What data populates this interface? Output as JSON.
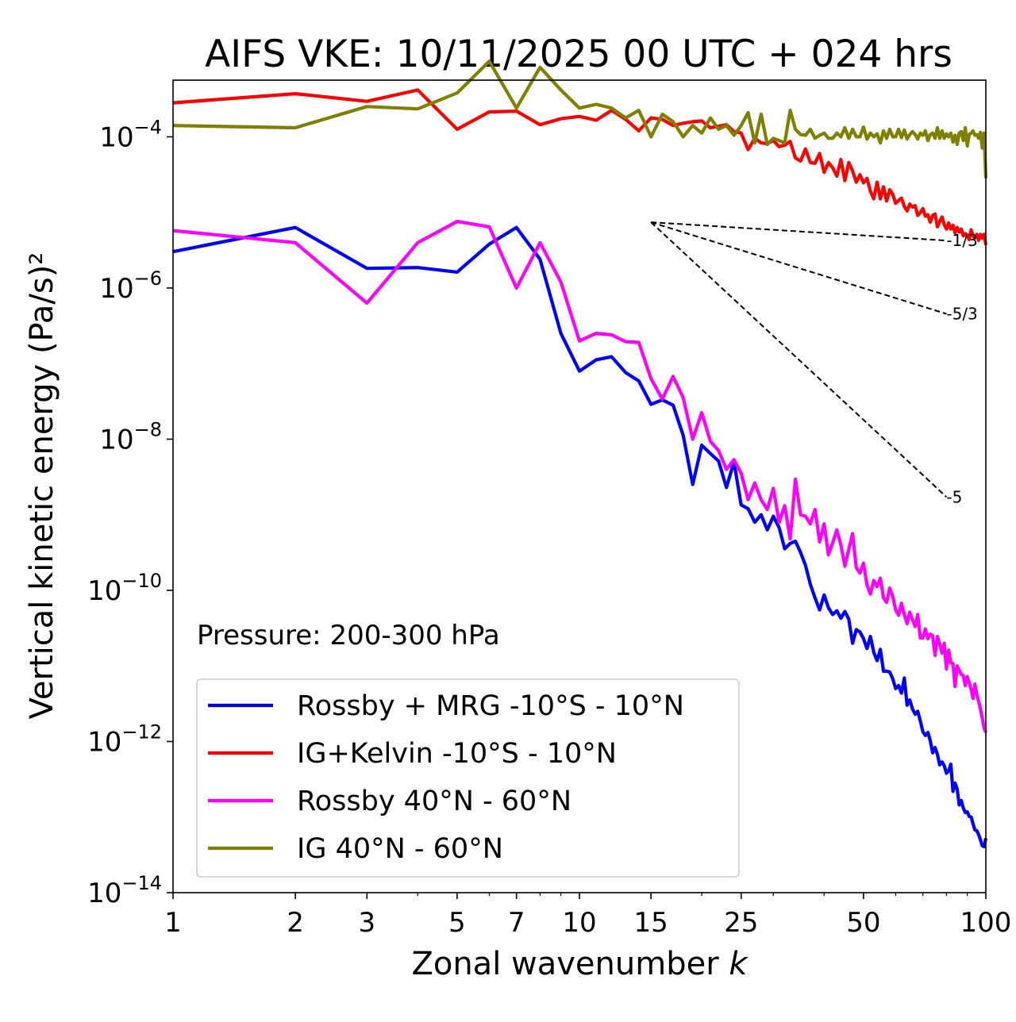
{
  "chart_data": {
    "type": "line",
    "title": "AIFS VKE: 10/11/2025 00 UTC + 024 hrs",
    "xlabel": "Zonal wavenumber",
    "xlabel_var": "k",
    "ylabel": "Vertical kinetic energy (Pa/s)²",
    "xscale": "log",
    "yscale": "log",
    "xlim": [
      1,
      100
    ],
    "ylim_exp": [
      -14,
      -3.25
    ],
    "xticks": [
      1,
      2,
      3,
      5,
      7,
      10,
      15,
      25,
      50,
      100
    ],
    "xtick_labels": [
      "1",
      "2",
      "3",
      "5",
      "7",
      "10",
      "15",
      "25",
      "50",
      "100"
    ],
    "yticks_exp": [
      -14,
      -12,
      -10,
      -8,
      -6,
      -4
    ],
    "ytick_labels": [
      {
        "base": "10",
        "exp": "−14"
      },
      {
        "base": "10",
        "exp": "−12"
      },
      {
        "base": "10",
        "exp": "−10"
      },
      {
        "base": "10",
        "exp": "−8"
      },
      {
        "base": "10",
        "exp": "−6"
      },
      {
        "base": "10",
        "exp": "−4"
      }
    ],
    "annotation": "Pressure: 200-300 hPa",
    "legend_position": "lower-left",
    "reference_slopes": [
      {
        "label": "-1/3",
        "slope": -0.333,
        "from_k": 15,
        "to_k": 80,
        "from_log10": -5.13
      },
      {
        "label": "-5/3",
        "slope": -1.667,
        "from_k": 15,
        "to_k": 80,
        "from_log10": -5.13
      },
      {
        "label": "-5",
        "slope": -5,
        "from_k": 15,
        "to_k": 80,
        "from_log10": -5.13
      }
    ],
    "series": [
      {
        "name": "Rossby + MRG -10°S - 10°N",
        "color": "#0000ff",
        "values_log10": [
          -5.52,
          -5.2,
          -5.74,
          -5.73,
          -5.79,
          -5.42,
          -5.2,
          -5.62,
          -6.6,
          -7.1,
          -6.95,
          -6.91,
          -7.12,
          -7.23,
          -7.54,
          -7.48,
          -7.55,
          -7.95,
          -8.6,
          -8.08,
          -8.19,
          -8.29,
          -8.64,
          -8.3,
          -8.87,
          -8.92,
          -9.1,
          -9.0,
          -9.2,
          -9.02,
          -9.17,
          -9.45,
          -9.38,
          -9.35,
          -9.5,
          -9.67,
          -9.92,
          -10.1,
          -10.26,
          -10.06,
          -10.23,
          -10.32,
          -10.27,
          -10.37,
          -10.28,
          -10.38,
          -10.7,
          -10.52,
          -10.55,
          -10.64,
          -10.77,
          -10.61,
          -10.82,
          -10.93,
          -10.78,
          -11.07,
          -11.07,
          -11.08,
          -11.17,
          -11.3,
          -11.26,
          -11.36,
          -11.16,
          -11.52,
          -11.45,
          -11.57,
          -11.64,
          -11.6,
          -11.73,
          -11.87,
          -11.92,
          -11.88,
          -11.99,
          -12.15,
          -12.08,
          -12.17,
          -12.31,
          -12.27,
          -12.32,
          -12.42,
          -12.39,
          -12.3,
          -12.66,
          -12.55,
          -12.63,
          -12.84,
          -12.78,
          -12.88,
          -12.94,
          -12.93,
          -12.99,
          -13.0,
          -13.09,
          -13.17,
          -13.18,
          -13.23,
          -13.3,
          -13.38,
          -13.39,
          -13.28
        ]
      },
      {
        "name": "IG+Kelvin -10°S - 10°N",
        "color": "#ff0000",
        "values_log10": [
          -3.55,
          -3.43,
          -3.53,
          -3.38,
          -3.9,
          -3.67,
          -3.66,
          -3.84,
          -3.76,
          -3.73,
          -3.78,
          -3.65,
          -3.77,
          -3.92,
          -3.75,
          -3.77,
          -3.85,
          -3.82,
          -3.8,
          -3.79,
          -3.88,
          -3.86,
          -3.84,
          -3.93,
          -3.95,
          -4.17,
          -4.02,
          -4.08,
          -4.09,
          -4.05,
          -4.13,
          -4.11,
          -4.06,
          -4.28,
          -4.32,
          -4.16,
          -4.34,
          -4.35,
          -4.22,
          -4.47,
          -4.34,
          -4.41,
          -4.52,
          -4.3,
          -4.58,
          -4.34,
          -4.45,
          -4.6,
          -4.5,
          -4.61,
          -4.55,
          -4.72,
          -4.82,
          -4.6,
          -4.82,
          -4.66,
          -4.85,
          -4.7,
          -4.76,
          -4.88,
          -4.84,
          -4.81,
          -4.92,
          -4.98,
          -4.89,
          -4.93,
          -4.91,
          -5.04,
          -5.0,
          -4.95,
          -5.05,
          -5.03,
          -5.13,
          -5.04,
          -5.02,
          -5.19,
          -5.12,
          -5.06,
          -5.16,
          -5.22,
          -5.14,
          -5.22,
          -5.17,
          -5.27,
          -5.2,
          -5.26,
          -5.22,
          -5.31,
          -5.28,
          -5.3,
          -5.36,
          -5.23,
          -5.31,
          -5.34,
          -5.29,
          -5.37,
          -5.29,
          -5.34,
          -5.29,
          -5.43
        ]
      },
      {
        "name": "Rossby 40°N - 60°N",
        "color": "#ff00ff",
        "values_log10": [
          -5.24,
          -5.4,
          -6.2,
          -5.4,
          -5.12,
          -5.19,
          -6.0,
          -5.4,
          -5.92,
          -6.7,
          -6.6,
          -6.62,
          -6.71,
          -6.72,
          -7.2,
          -7.47,
          -7.17,
          -7.45,
          -8.0,
          -7.65,
          -8.03,
          -8.15,
          -8.4,
          -8.27,
          -8.45,
          -8.8,
          -8.58,
          -8.8,
          -8.93,
          -8.65,
          -9.1,
          -8.88,
          -9.32,
          -8.53,
          -9.0,
          -9.02,
          -9.12,
          -8.93,
          -9.36,
          -9.12,
          -9.53,
          -9.37,
          -9.2,
          -9.4,
          -9.68,
          -9.46,
          -9.25,
          -9.7,
          -9.77,
          -9.64,
          -9.93,
          -10.05,
          -9.87,
          -9.95,
          -9.84,
          -10.1,
          -10.16,
          -9.97,
          -10.08,
          -10.26,
          -10.33,
          -10.17,
          -10.32,
          -10.44,
          -10.29,
          -10.39,
          -10.48,
          -10.32,
          -10.63,
          -10.63,
          -10.51,
          -10.64,
          -10.58,
          -10.6,
          -10.86,
          -10.61,
          -10.71,
          -10.83,
          -10.7,
          -11.04,
          -10.79,
          -10.96,
          -10.97,
          -11.27,
          -11.0,
          -11.06,
          -11.11,
          -11.13,
          -11.26,
          -11.14,
          -11.22,
          -11.31,
          -11.43,
          -11.24,
          -11.37,
          -11.47,
          -11.57,
          -11.69,
          -11.82,
          -11.88
        ]
      },
      {
        "name": "IG 40°N - 60°N",
        "color": "#808000",
        "values_log10": [
          -3.85,
          -3.88,
          -3.6,
          -3.63,
          -3.42,
          -3.0,
          -3.62,
          -3.08,
          -3.38,
          -3.62,
          -3.57,
          -3.62,
          -3.75,
          -3.65,
          -4.0,
          -3.7,
          -3.8,
          -4.0,
          -3.85,
          -3.95,
          -3.75,
          -3.9,
          -3.85,
          -3.98,
          -3.85,
          -3.68,
          -4.08,
          -3.7,
          -4.1,
          -4.02,
          -4.05,
          -4.08,
          -3.65,
          -3.9,
          -3.97,
          -3.98,
          -3.9,
          -4.02,
          -3.98,
          -3.95,
          -4.02,
          -4.02,
          -3.95,
          -4.0,
          -3.88,
          -4.02,
          -3.9,
          -4.0,
          -4.0,
          -3.87,
          -4.03,
          -3.95,
          -4.0,
          -3.96,
          -4.08,
          -3.92,
          -4.02,
          -3.9,
          -4.0,
          -4.0,
          -3.9,
          -4.01,
          -3.91,
          -4.03,
          -3.97,
          -3.93,
          -3.97,
          -4.03,
          -3.95,
          -3.98,
          -3.92,
          -4.05,
          -3.97,
          -3.95,
          -4.02,
          -3.88,
          -4.02,
          -3.92,
          -4.02,
          -3.96,
          -4.0,
          -3.95,
          -4.07,
          -3.98,
          -4.1,
          -3.95,
          -3.93,
          -4.05,
          -3.88,
          -4.12,
          -3.97,
          -3.95,
          -3.92,
          -3.98,
          -3.97,
          -4.02,
          -3.94,
          -4.15,
          -3.95,
          -4.55
        ]
      }
    ]
  }
}
